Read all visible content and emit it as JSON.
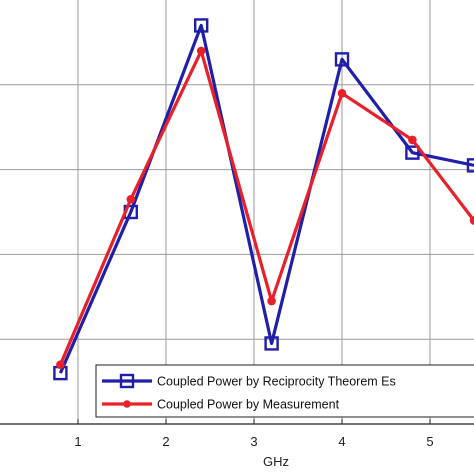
{
  "chart_data": {
    "type": "line",
    "xlabel": "GHz",
    "ylabel": "",
    "title": "",
    "xlim": [
      0,
      5.5
    ],
    "ylim": [
      0,
      5
    ],
    "xticks": [
      1,
      2,
      3,
      4,
      5
    ],
    "grid": true,
    "legend_position": "bottom-right",
    "series": [
      {
        "name": "Coupled Power by Reciprocity Theorem Es",
        "color": "#1f1fa8",
        "marker": "square",
        "x": [
          0.8,
          1.6,
          2.4,
          3.2,
          4.0,
          4.8,
          5.5
        ],
        "y": [
          0.6,
          2.5,
          4.7,
          0.95,
          4.3,
          3.2,
          3.05
        ]
      },
      {
        "name": "Coupled Power by Measurement",
        "color": "#e8202a",
        "marker": "dot",
        "x": [
          0.8,
          1.6,
          2.4,
          3.2,
          4.0,
          4.8,
          5.5
        ],
        "y": [
          0.7,
          2.65,
          4.4,
          1.45,
          3.9,
          3.35,
          2.4
        ]
      }
    ]
  }
}
